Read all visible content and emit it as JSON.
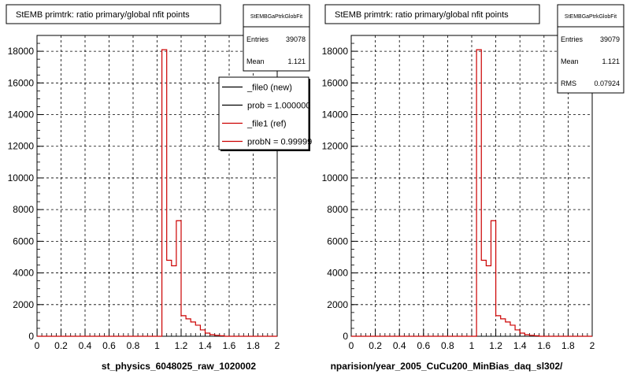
{
  "panels": [
    {
      "title": "StEMB primtrk: ratio primary/global nfit points",
      "stats": {
        "name": "StEMBGaPtrkGlobFit",
        "rows": [
          {
            "label": "Entries",
            "value": "39078"
          },
          {
            "label": "Mean",
            "value": "1.121"
          }
        ]
      },
      "legend": [
        {
          "label": "_file0 (new)",
          "color": "#000000"
        },
        {
          "label": "prob = 1.000000",
          "color": "#000000"
        },
        {
          "label": "_file1 (ref)",
          "color": "#cc0000"
        },
        {
          "label": "probN = 0.99999",
          "color": "#cc0000"
        }
      ],
      "xlabel": "st_physics_6048025_raw_1020002"
    },
    {
      "title": "StEMB primtrk: ratio primary/global nfit points",
      "stats": {
        "name": "StEMBGaPtrkGlobFit",
        "rows": [
          {
            "label": "Entries",
            "value": "39079"
          },
          {
            "label": "Mean",
            "value": "1.121"
          },
          {
            "label": "RMS",
            "value": "0.07924"
          }
        ]
      },
      "legend": [],
      "xlabel": "nparision/year_2005_CuCu200_MinBias_daq_sl302/"
    }
  ],
  "chart_data": {
    "type": "bar",
    "xlim": [
      0,
      2
    ],
    "ylim": [
      0,
      19000
    ],
    "grid": true,
    "xticks": [
      "0",
      "0.2",
      "0.4",
      "0.6",
      "0.8",
      "1",
      "1.2",
      "1.4",
      "1.6",
      "1.8",
      "2"
    ],
    "yticks": [
      "0",
      "2000",
      "4000",
      "6000",
      "8000",
      "10000",
      "12000",
      "14000",
      "16000",
      "18000"
    ],
    "bin_width": 0.04,
    "bins": [
      {
        "x": 1.04,
        "y": 18100
      },
      {
        "x": 1.08,
        "y": 4800
      },
      {
        "x": 1.12,
        "y": 4450
      },
      {
        "x": 1.16,
        "y": 7300
      },
      {
        "x": 1.2,
        "y": 1300
      },
      {
        "x": 1.24,
        "y": 1100
      },
      {
        "x": 1.28,
        "y": 900
      },
      {
        "x": 1.32,
        "y": 700
      },
      {
        "x": 1.36,
        "y": 400
      },
      {
        "x": 1.4,
        "y": 200
      },
      {
        "x": 1.44,
        "y": 100
      },
      {
        "x": 1.48,
        "y": 60
      },
      {
        "x": 1.52,
        "y": 30
      }
    ],
    "color": "#cc0000"
  }
}
